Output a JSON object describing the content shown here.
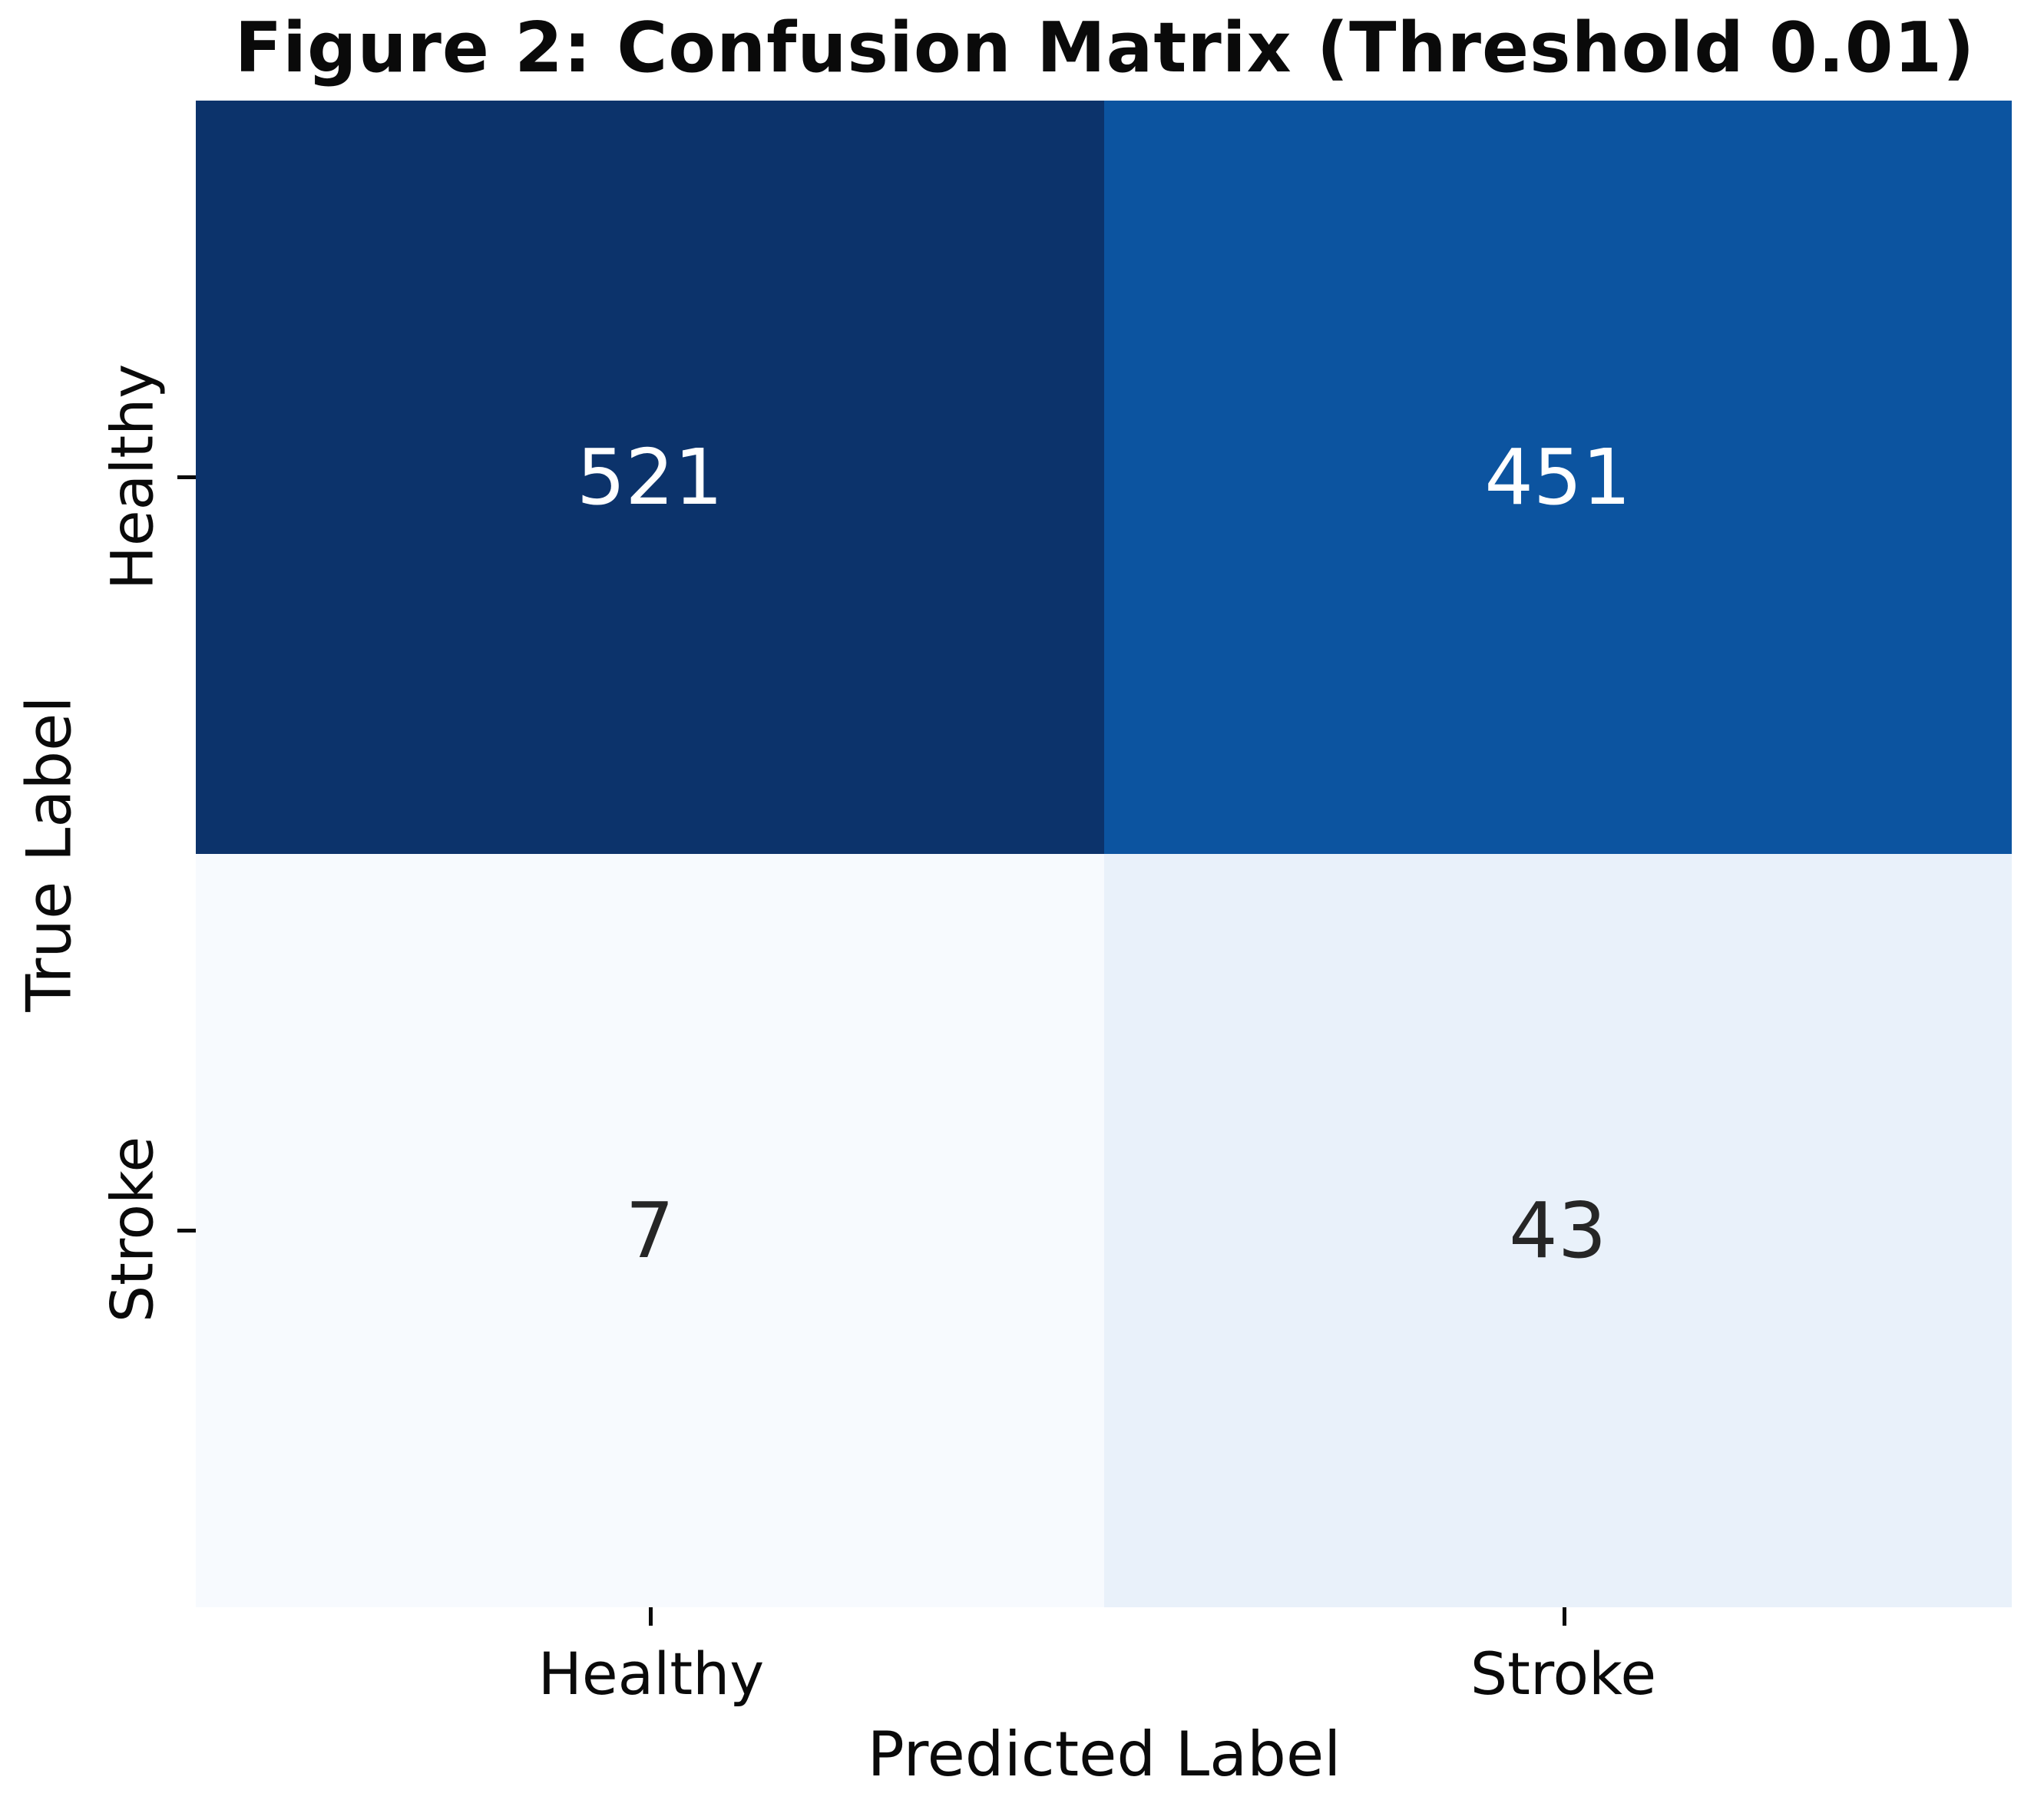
{
  "chart_data": {
    "type": "heatmap",
    "title": "Figure 2: Confusion Matrix (Threshold 0.01)",
    "xlabel": "Predicted Label",
    "ylabel": "True Label",
    "x_categories": [
      "Healthy",
      "Stroke"
    ],
    "y_categories": [
      "Healthy",
      "Stroke"
    ],
    "rows": [
      {
        "true_label": "Healthy",
        "cells": [
          {
            "pred_label": "Healthy",
            "value": "521",
            "bg": "#0c336b",
            "fg": "#ffffff"
          },
          {
            "pred_label": "Stroke",
            "value": "451",
            "bg": "#0c54a0",
            "fg": "#ffffff"
          }
        ]
      },
      {
        "true_label": "Stroke",
        "cells": [
          {
            "pred_label": "Healthy",
            "value": "7",
            "bg": "#f7fafe",
            "fg": "#262626"
          },
          {
            "pred_label": "Stroke",
            "value": "43",
            "bg": "#e9f1fa",
            "fg": "#262626"
          }
        ]
      }
    ],
    "colormap": "Blues",
    "value_range": [
      7,
      521
    ],
    "legend": "none",
    "grid": false,
    "background": "#ffffff"
  }
}
